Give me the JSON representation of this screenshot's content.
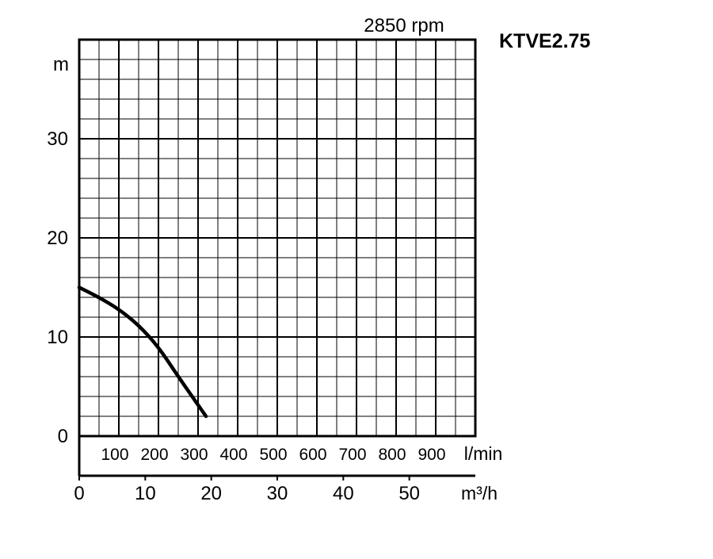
{
  "chart_data": {
    "type": "line",
    "model": "KTVE2.75",
    "speed_label": "2850 rpm",
    "y_unit": "m",
    "y_ticks": [
      "0",
      "10",
      "20",
      "30"
    ],
    "ylim": [
      0,
      40
    ],
    "flow_lmin_unit": "l/min",
    "flow_lmin_ticks": [
      "100",
      "200",
      "300",
      "400",
      "500",
      "600",
      "700",
      "800",
      "900"
    ],
    "flow_m3h_unit": "m³/h",
    "flow_m3h_ticks": [
      "0",
      "10",
      "20",
      "30",
      "40",
      "50"
    ],
    "xlim_m3h": [
      0,
      60
    ],
    "grid": true,
    "series": [
      {
        "x_m3h": [
          0,
          3,
          6,
          9,
          12,
          15,
          19.2
        ],
        "y_m": [
          15,
          14,
          12.8,
          11.2,
          9,
          6,
          2
        ]
      }
    ]
  }
}
